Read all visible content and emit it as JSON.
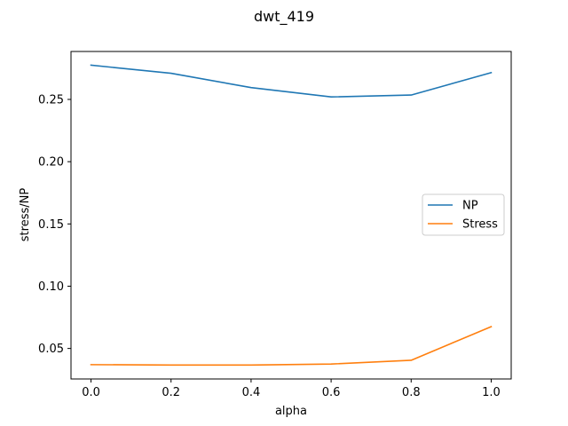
{
  "chart_data": {
    "type": "line",
    "title": "dwt_419",
    "xlabel": "alpha",
    "ylabel": "stress/NP",
    "x": [
      0.0,
      0.2,
      0.4,
      0.6,
      0.8,
      1.0
    ],
    "xlim": [
      -0.05,
      1.05
    ],
    "ylim": [
      0.0255,
      0.2885
    ],
    "xticks": [
      0.0,
      0.2,
      0.4,
      0.6,
      0.8,
      1.0
    ],
    "xtick_labels": [
      "0.0",
      "0.2",
      "0.4",
      "0.6",
      "0.8",
      "1.0"
    ],
    "yticks": [
      0.05,
      0.1,
      0.15,
      0.2,
      0.25
    ],
    "ytick_labels": [
      "0.05",
      "0.10",
      "0.15",
      "0.20",
      "0.25"
    ],
    "grid": false,
    "legend_position": "center-right",
    "series": [
      {
        "name": "NP",
        "color": "#1f77b4",
        "values": [
          0.2775,
          0.271,
          0.2595,
          0.252,
          0.2535,
          0.2715
        ]
      },
      {
        "name": "Stress",
        "color": "#ff7f0e",
        "values": [
          0.037,
          0.0367,
          0.0367,
          0.0375,
          0.0405,
          0.0675
        ]
      }
    ]
  }
}
